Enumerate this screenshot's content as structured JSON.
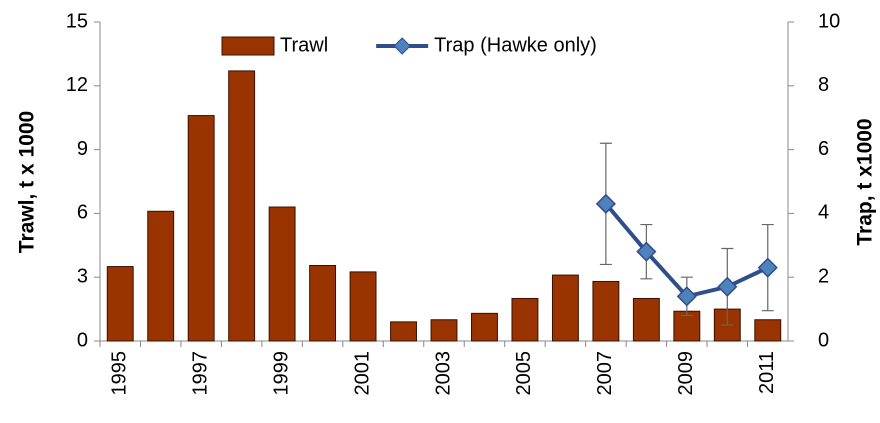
{
  "chart_data": {
    "type": "bar_line",
    "categories": [
      "1995",
      null,
      "1997",
      null,
      "1999",
      null,
      "2001",
      null,
      "2003",
      null,
      "2005",
      null,
      "2007",
      null,
      "2009",
      null,
      "2011"
    ],
    "y_label": "Trawl, t x 1000",
    "y2_label": "Trap, t x1000",
    "ylim": [
      0,
      15
    ],
    "yticks": [
      0,
      3,
      6,
      9,
      12,
      15
    ],
    "y2lim": [
      0,
      10
    ],
    "y2ticks": [
      0,
      2,
      4,
      6,
      8,
      10
    ],
    "legend": "top",
    "series": [
      {
        "name": "Trawl",
        "type": "bar",
        "color": "#993300",
        "values": [
          3.5,
          6.1,
          10.6,
          12.7,
          6.3,
          3.55,
          3.25,
          0.9,
          1.0,
          1.3,
          2.0,
          3.1,
          2.8,
          2.0,
          1.4,
          1.5,
          1.0
        ]
      },
      {
        "name": "Trap (Hawke only)",
        "type": "line",
        "axis": "y2",
        "color": "#2e4f8a",
        "marker_color": "#4f81bd",
        "values": [
          null,
          null,
          null,
          null,
          null,
          null,
          null,
          null,
          null,
          null,
          null,
          null,
          4.3,
          2.8,
          1.4,
          1.7,
          2.3
        ],
        "errors": [
          null,
          null,
          null,
          null,
          null,
          null,
          null,
          null,
          null,
          null,
          null,
          null,
          1.9,
          0.85,
          0.6,
          1.2,
          1.35
        ]
      }
    ]
  }
}
